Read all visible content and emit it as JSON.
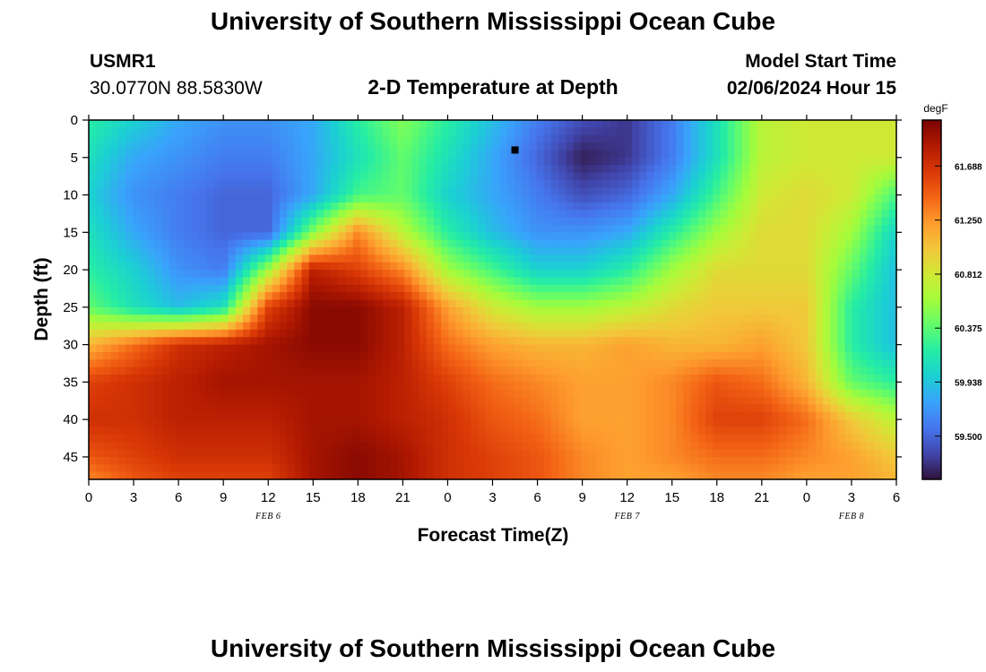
{
  "header": {
    "title_top": "University of Southern Mississippi Ocean Cube",
    "station_id": "USMR1",
    "station_coords": "30.0770N  88.5830W",
    "model_start_label": "Model Start Time",
    "model_start_value": "02/06/2024 Hour 15",
    "title_bottom": "University of Southern Mississippi Ocean Cube"
  },
  "colors": {
    "colormap": [
      "#30123b",
      "#4145ab",
      "#4675ed",
      "#39a2fc",
      "#1bcfd4",
      "#24eca6",
      "#61fc6c",
      "#a4fc3b",
      "#d1e834",
      "#f3c63a",
      "#fe9b2d",
      "#f36315",
      "#d93806",
      "#b11901",
      "#7a0402"
    ]
  },
  "chart_data": {
    "type": "heatmap",
    "title": "2-D Temperature at Depth",
    "xlabel": "Forecast Time(Z)",
    "ylabel": "Depth (ft)",
    "x_tick_labels": [
      "0",
      "3",
      "6",
      "9",
      "12",
      "15",
      "18",
      "21",
      "0",
      "3",
      "6",
      "9",
      "12",
      "15",
      "18",
      "21",
      "0",
      "3",
      "6"
    ],
    "x_range_hours": [
      0,
      54
    ],
    "date_labels": [
      {
        "text": "FEB 6",
        "hour": 12
      },
      {
        "text": "FEB 7",
        "hour": 36
      },
      {
        "text": "FEB 8",
        "hour": 51
      }
    ],
    "y_ticks": [
      0,
      5,
      10,
      15,
      20,
      25,
      30,
      35,
      40,
      45
    ],
    "y_range_ft": [
      0,
      48
    ],
    "marker": {
      "hour": 28.5,
      "depth_ft": 4
    },
    "colorbar": {
      "unit": "degF",
      "vmin": 59.15,
      "vmax": 62.06,
      "ticks": [
        "61.688",
        "61.250",
        "60.812",
        "60.375",
        "59.938",
        "59.500"
      ]
    },
    "grid_step_hours": 3,
    "grid_depths_ft": [
      0,
      5,
      10,
      15,
      20,
      25,
      30,
      35,
      40,
      45,
      48
    ],
    "temperature_grid": [
      [
        60.2,
        60.0,
        59.8,
        59.7,
        59.7,
        59.8,
        60.2,
        60.5,
        60.2,
        59.9,
        59.6,
        59.4,
        59.3,
        59.6,
        60.1,
        60.7,
        60.8,
        60.8,
        60.8
      ],
      [
        60.1,
        59.8,
        59.7,
        59.6,
        59.6,
        59.8,
        60.1,
        60.4,
        60.1,
        59.8,
        59.5,
        59.2,
        59.3,
        59.6,
        60.1,
        60.7,
        60.8,
        60.8,
        60.8
      ],
      [
        60.0,
        59.7,
        59.6,
        59.5,
        59.5,
        59.8,
        60.3,
        60.4,
        60.0,
        59.8,
        59.6,
        59.4,
        59.5,
        59.8,
        60.3,
        60.8,
        60.9,
        60.8,
        60.3
      ],
      [
        60.1,
        59.8,
        59.6,
        59.5,
        59.5,
        60.5,
        61.3,
        60.7,
        60.2,
        59.9,
        59.7,
        59.7,
        59.8,
        60.2,
        60.6,
        60.9,
        60.9,
        60.6,
        60.0
      ],
      [
        60.2,
        60.0,
        59.7,
        59.6,
        60.6,
        61.8,
        61.6,
        61.3,
        60.6,
        60.3,
        60.0,
        60.0,
        60.2,
        60.6,
        60.9,
        60.9,
        60.9,
        60.4,
        59.9
      ],
      [
        60.4,
        60.1,
        59.9,
        60.1,
        61.6,
        62.0,
        62.0,
        61.8,
        61.2,
        60.8,
        60.6,
        60.6,
        60.7,
        60.9,
        61.0,
        61.0,
        61.0,
        60.2,
        59.9
      ],
      [
        61.1,
        61.4,
        61.7,
        61.8,
        61.9,
        62.0,
        62.0,
        61.8,
        61.4,
        61.2,
        61.1,
        61.1,
        61.2,
        61.1,
        61.1,
        61.2,
        61.0,
        60.2,
        59.9
      ],
      [
        61.6,
        61.7,
        61.8,
        61.9,
        61.9,
        61.9,
        61.9,
        61.8,
        61.6,
        61.4,
        61.3,
        61.2,
        61.2,
        61.3,
        61.5,
        61.4,
        61.1,
        60.4,
        60.2
      ],
      [
        61.7,
        61.7,
        61.8,
        61.8,
        61.8,
        61.9,
        61.9,
        61.8,
        61.7,
        61.5,
        61.4,
        61.2,
        61.2,
        61.3,
        61.6,
        61.6,
        61.4,
        61.0,
        60.7
      ],
      [
        61.5,
        61.6,
        61.7,
        61.7,
        61.7,
        61.9,
        62.0,
        61.9,
        61.7,
        61.6,
        61.5,
        61.3,
        61.2,
        61.3,
        61.4,
        61.4,
        61.3,
        61.2,
        61.0
      ],
      [
        61.3,
        61.5,
        61.6,
        61.6,
        61.6,
        61.9,
        62.0,
        61.9,
        61.7,
        61.6,
        61.5,
        61.3,
        61.2,
        61.2,
        61.3,
        61.3,
        61.2,
        61.2,
        61.1
      ]
    ]
  }
}
